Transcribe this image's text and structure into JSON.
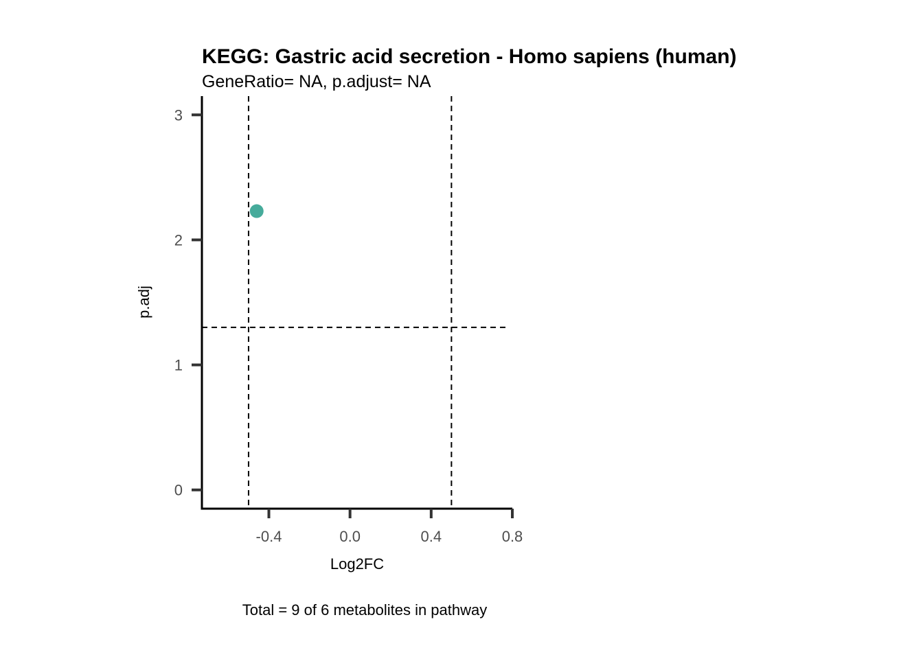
{
  "chart_data": {
    "type": "scatter",
    "title": "KEGG: Gastric acid secretion - Homo sapiens (human)",
    "subtitle": "GeneRatio= NA, p.adjust= NA",
    "xlabel": "Log2FC",
    "ylabel": "p.adj",
    "caption": "Total = 9 of 6 metabolites in pathway",
    "xlim": [
      -0.73,
      0.8
    ],
    "ylim": [
      -0.15,
      3.15
    ],
    "x_ticks": [
      {
        "value": -0.4,
        "label": "-0.4"
      },
      {
        "value": 0.0,
        "label": "0.0"
      },
      {
        "value": 0.4,
        "label": "0.4"
      },
      {
        "value": 0.8,
        "label": "0.8"
      }
    ],
    "y_ticks": [
      {
        "value": 0,
        "label": "0"
      },
      {
        "value": 1,
        "label": "1"
      },
      {
        "value": 2,
        "label": "2"
      },
      {
        "value": 3,
        "label": "3"
      }
    ],
    "points": [
      {
        "x": -0.46,
        "y": 2.23
      }
    ],
    "point_color": "#46ab9b",
    "reference_lines": {
      "vertical": [
        -0.5,
        0.5
      ],
      "horizontal": [
        1.3
      ]
    },
    "grid": false
  }
}
